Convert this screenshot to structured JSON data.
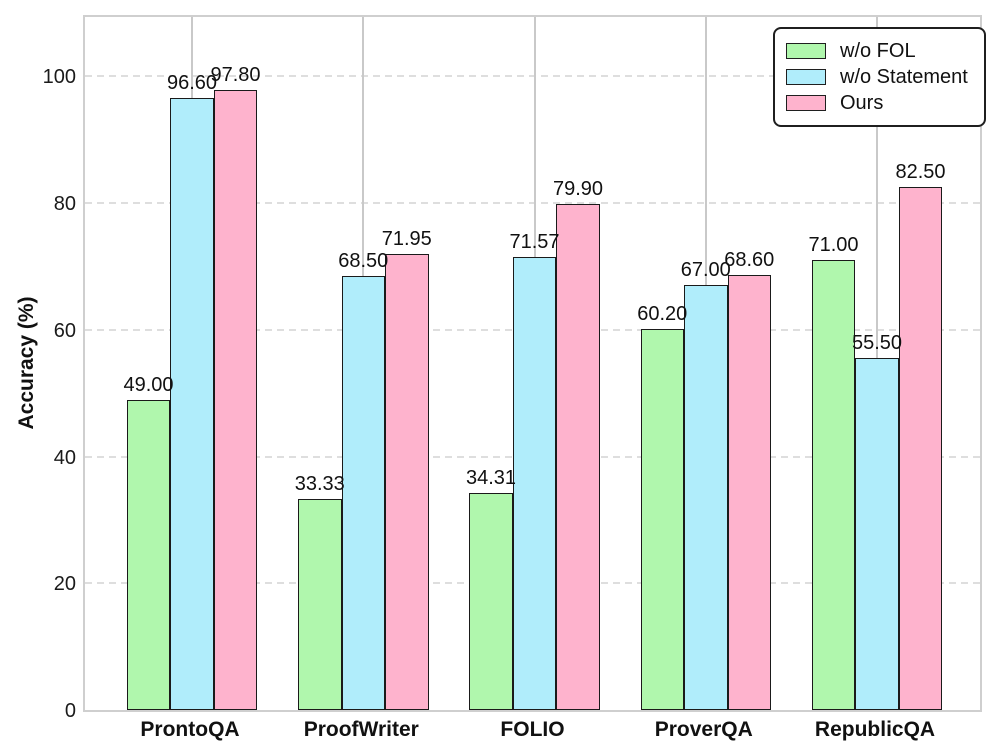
{
  "figure": {
    "background": "#ffffff"
  },
  "chart_data": {
    "type": "bar",
    "title": "",
    "xlabel": "",
    "ylabel": "Accuracy (%)",
    "categories": [
      "ProntoQA",
      "ProofWriter",
      "FOLIO",
      "ProverQA",
      "RepublicQA"
    ],
    "series": [
      {
        "name": "w/o FOL",
        "color": "#b0f7ad",
        "values": [
          49.0,
          33.33,
          34.31,
          60.2,
          71.0
        ],
        "labels": [
          "49.00",
          "33.33",
          "34.31",
          "60.20",
          "71.00"
        ]
      },
      {
        "name": "w/o Statement",
        "color": "#b0edfb",
        "values": [
          96.6,
          68.5,
          71.57,
          67.0,
          55.5
        ],
        "labels": [
          "96.60",
          "68.50",
          "71.57",
          "67.00",
          "55.50"
        ]
      },
      {
        "name": "Ours",
        "color": "#feb3cd",
        "values": [
          97.8,
          71.95,
          79.9,
          68.6,
          82.5
        ],
        "labels": [
          "97.80",
          "71.95",
          "79.90",
          "68.60",
          "82.50"
        ]
      }
    ],
    "yticks": [
      0,
      20,
      40,
      60,
      80,
      100
    ],
    "ylim": [
      0,
      110
    ],
    "bar_edge_color": "#1a1a1a",
    "grid": {
      "horizontal": "dashed",
      "vertical": "solid",
      "on": true
    },
    "legend": {
      "position": "upper right",
      "entries": [
        "w/o FOL",
        "w/o Statement",
        "Ours"
      ]
    }
  }
}
